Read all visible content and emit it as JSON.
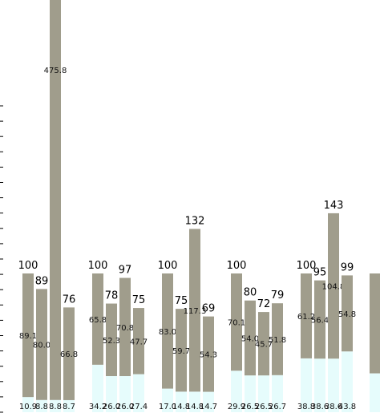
{
  "chart_data": {
    "type": "bar",
    "stacked": true,
    "colors": {
      "top": "#a09d8c",
      "bottom": "#e6fcfc",
      "axis": "#000000"
    },
    "groups": [
      {
        "bars": [
          {
            "bottom": 10.9,
            "top": 89.1,
            "total": "100",
            "bottom_label": "10.9",
            "top_label": "89.1"
          },
          {
            "bottom": 8.8,
            "top": 80.0,
            "total": "89",
            "bottom_label": "8.8",
            "top_label": "80.0"
          },
          {
            "bottom": 8.8,
            "top": 475.8,
            "total": "",
            "bottom_label": "8.8",
            "top_label": "475.8"
          },
          {
            "bottom": 8.7,
            "top": 66.8,
            "total": "76",
            "bottom_label": "8.7",
            "top_label": "66.8"
          }
        ]
      },
      {
        "bars": [
          {
            "bottom": 34.2,
            "top": 65.8,
            "total": "100",
            "bottom_label": "34.2",
            "top_label": "65.8"
          },
          {
            "bottom": 26.0,
            "top": 52.3,
            "total": "78",
            "bottom_label": "26.0",
            "top_label": "52.3"
          },
          {
            "bottom": 26.0,
            "top": 70.8,
            "total": "97",
            "bottom_label": "26.0",
            "top_label": "70.8"
          },
          {
            "bottom": 27.4,
            "top": 47.7,
            "total": "75",
            "bottom_label": "27.4",
            "top_label": "47.7"
          }
        ]
      },
      {
        "bars": [
          {
            "bottom": 17.0,
            "top": 83.0,
            "total": "100",
            "bottom_label": "17.0",
            "top_label": "83.0"
          },
          {
            "bottom": 14.8,
            "top": 59.7,
            "total": "75",
            "bottom_label": "14.8",
            "top_label": "59.7"
          },
          {
            "bottom": 14.8,
            "top": 117.3,
            "total": "132",
            "bottom_label": "14.8",
            "top_label": "117.3"
          },
          {
            "bottom": 14.7,
            "top": 54.3,
            "total": "69",
            "bottom_label": "14.7",
            "top_label": "54.3"
          }
        ]
      },
      {
        "bars": [
          {
            "bottom": 29.9,
            "top": 70.1,
            "total": "100",
            "bottom_label": "29.9",
            "top_label": "70.1"
          },
          {
            "bottom": 26.5,
            "top": 54.0,
            "total": "80",
            "bottom_label": "26.5",
            "top_label": "54.0"
          },
          {
            "bottom": 26.5,
            "top": 45.7,
            "total": "72",
            "bottom_label": "26.5",
            "top_label": "45.7"
          },
          {
            "bottom": 26.7,
            "top": 51.8,
            "total": "79",
            "bottom_label": "26.7",
            "top_label": "51.8"
          }
        ]
      },
      {
        "bars": [
          {
            "bottom": 38.8,
            "top": 61.2,
            "total": "100",
            "bottom_label": "38.8",
            "top_label": "61.2"
          },
          {
            "bottom": 38.6,
            "top": 56.4,
            "total": "95",
            "bottom_label": "38.6",
            "top_label": "56.4"
          },
          {
            "bottom": 38.6,
            "top": 104.8,
            "total": "143",
            "bottom_label": "38.6",
            "top_label": "104.8"
          },
          {
            "bottom": 43.8,
            "top": 54.8,
            "total": "99",
            "bottom_label": "43.8",
            "top_label": "54.8"
          }
        ]
      },
      {
        "bars": [
          {
            "bottom": 28,
            "top": 72,
            "total": "",
            "bottom_label": "",
            "top_label": ""
          }
        ]
      }
    ]
  }
}
